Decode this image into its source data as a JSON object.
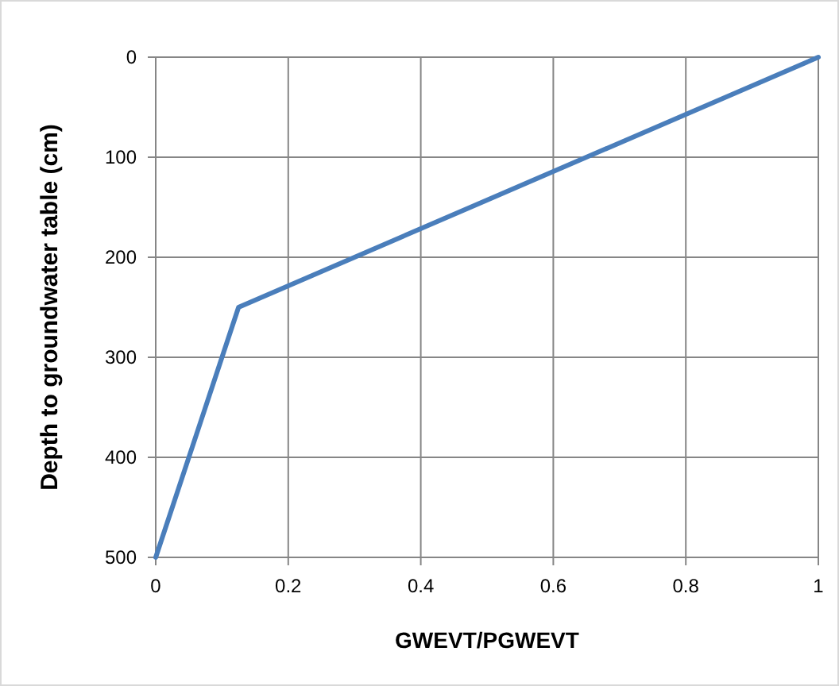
{
  "chart_data": {
    "type": "line",
    "xlabel": "GWEVT/PGWEVT",
    "ylabel": "Depth to groundwater table (cm)",
    "x": [
      0,
      0.125,
      1
    ],
    "series": [
      {
        "color": "#4a7ebb",
        "values": [
          500,
          250,
          0
        ]
      }
    ],
    "xlim": [
      0,
      1
    ],
    "xticks": [
      0,
      0.2,
      0.4,
      0.6,
      0.8,
      1
    ],
    "ylim": [
      500,
      0
    ],
    "yticks": [
      0,
      100,
      200,
      300,
      400,
      500
    ],
    "grid": true,
    "marker": "none",
    "line_style": "solid"
  }
}
